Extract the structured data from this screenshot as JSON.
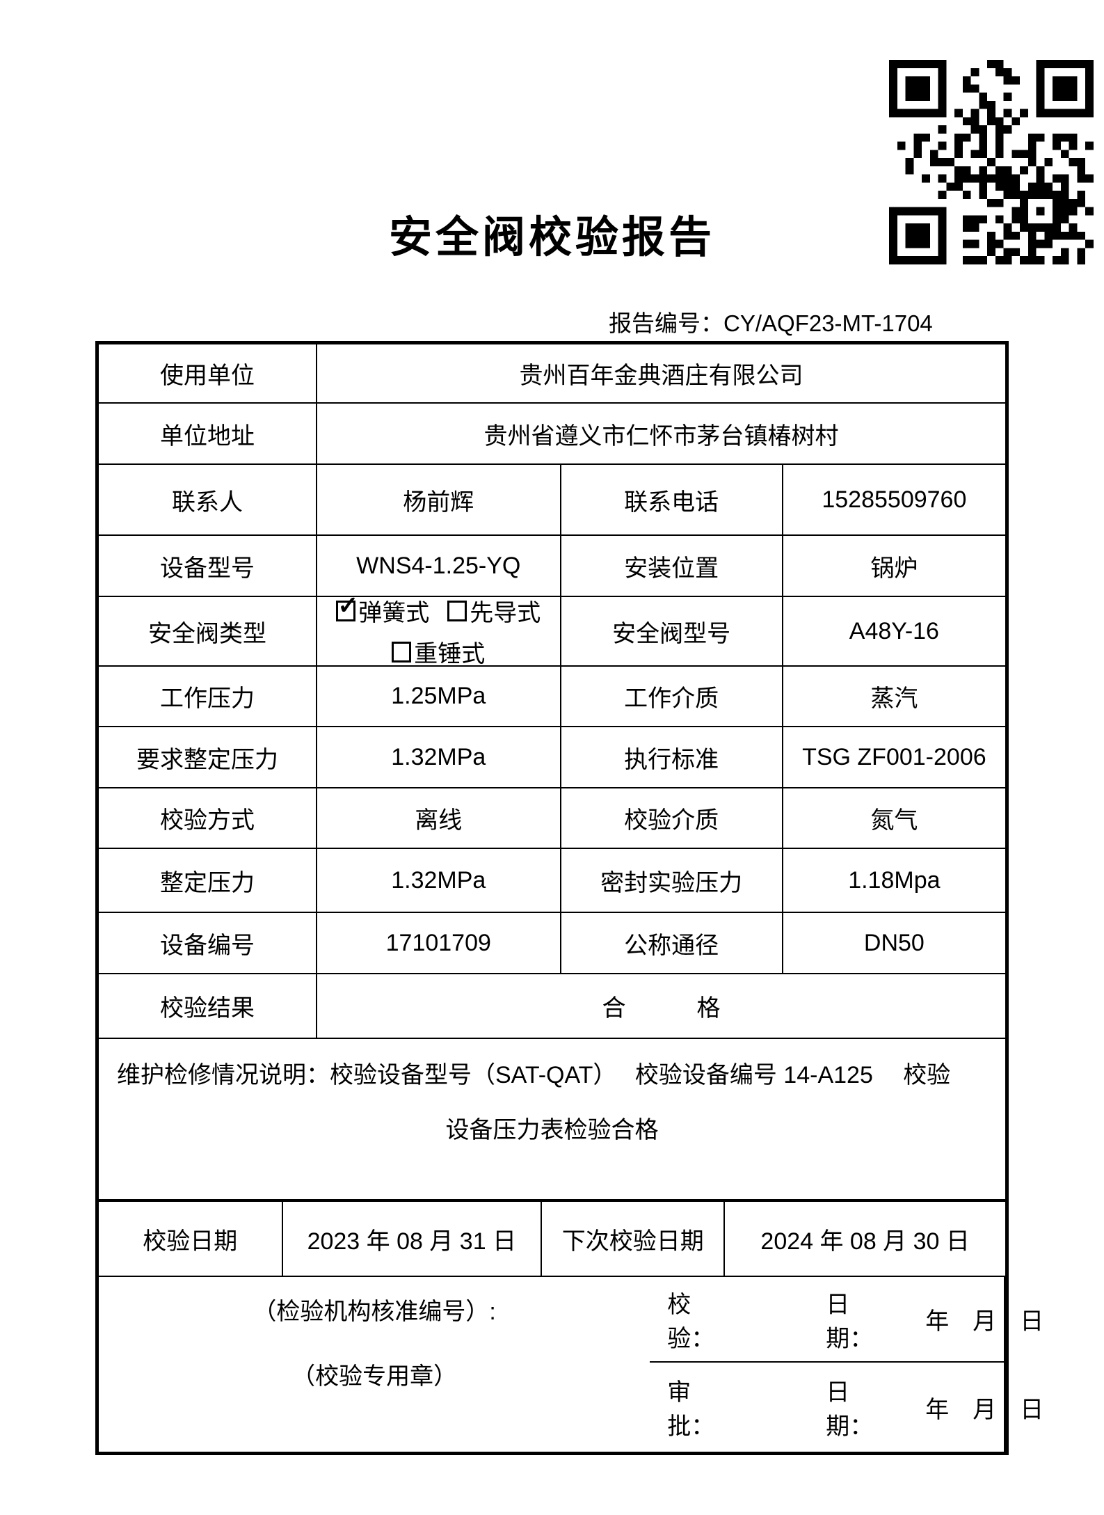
{
  "page": {
    "background": "#ffffff",
    "ink": "#000000"
  },
  "title": "安全阀校验报告",
  "report_no": {
    "label": "报告编号：",
    "value": "CY/AQF23-MT-1704"
  },
  "qr": {
    "name": "qr-code"
  },
  "table": {
    "rows": [
      {
        "label": "使用单位",
        "value": "贵州百年金典酒庄有限公司"
      },
      {
        "label": "单位地址",
        "value": "贵州省遵义市仁怀市茅台镇椿树村"
      },
      {
        "label": "联系人",
        "value": "杨前辉",
        "label2": "联系电话",
        "value2": "15285509760"
      },
      {
        "label": "设备型号",
        "value": "WNS4-1.25-YQ",
        "label2": "安装位置",
        "value2": "锅炉"
      },
      {
        "label": "安全阀类型",
        "label2": "安全阀型号",
        "value2": "A48Y-16"
      },
      {
        "label": "工作压力",
        "value": "1.25MPa",
        "label2": "工作介质",
        "value2": "蒸汽"
      },
      {
        "label": "要求整定压力",
        "value": "1.32MPa",
        "label2": "执行标准",
        "value2": "TSG ZF001-2006"
      },
      {
        "label": "校验方式",
        "value": "离线",
        "label2": "校验介质",
        "value2": "氮气"
      },
      {
        "label": "整定压力",
        "value": "1.32MPa",
        "label2": "密封实验压力",
        "value2": "1.18Mpa"
      },
      {
        "label": "设备编号",
        "value": "17101709",
        "label2": "公称通径",
        "value2": "DN50"
      },
      {
        "label": "校验结果",
        "value": "合　　　格"
      }
    ],
    "valve_type": {
      "options": [
        {
          "label": "弹簧式",
          "checked": true
        },
        {
          "label": "先导式",
          "checked": false
        },
        {
          "label": "重锤式",
          "checked": false
        }
      ],
      "check_glyph": "✓"
    },
    "maintenance": {
      "line1": "维护检修情况说明：校验设备型号（SAT-QAT）　 校验设备编号 14-A125　 校验",
      "line2": "设备压力表检验合格"
    },
    "dates": {
      "label": "校验日期",
      "value": "2023 年 08 月 31 日",
      "next_label": "下次校验日期",
      "next_value": "2024 年 08 月 30 日"
    },
    "sign": {
      "qc_label": "校验：",
      "qc_date_label": "日期：",
      "qc_ymd": "年　月　日",
      "approve_label": "审批：",
      "approve_date_label": "日期：",
      "approve_ymd": "年　月　日",
      "stamp_line1": "（检验机构核准编号）:",
      "stamp_line2": "（校验专用章）"
    }
  }
}
